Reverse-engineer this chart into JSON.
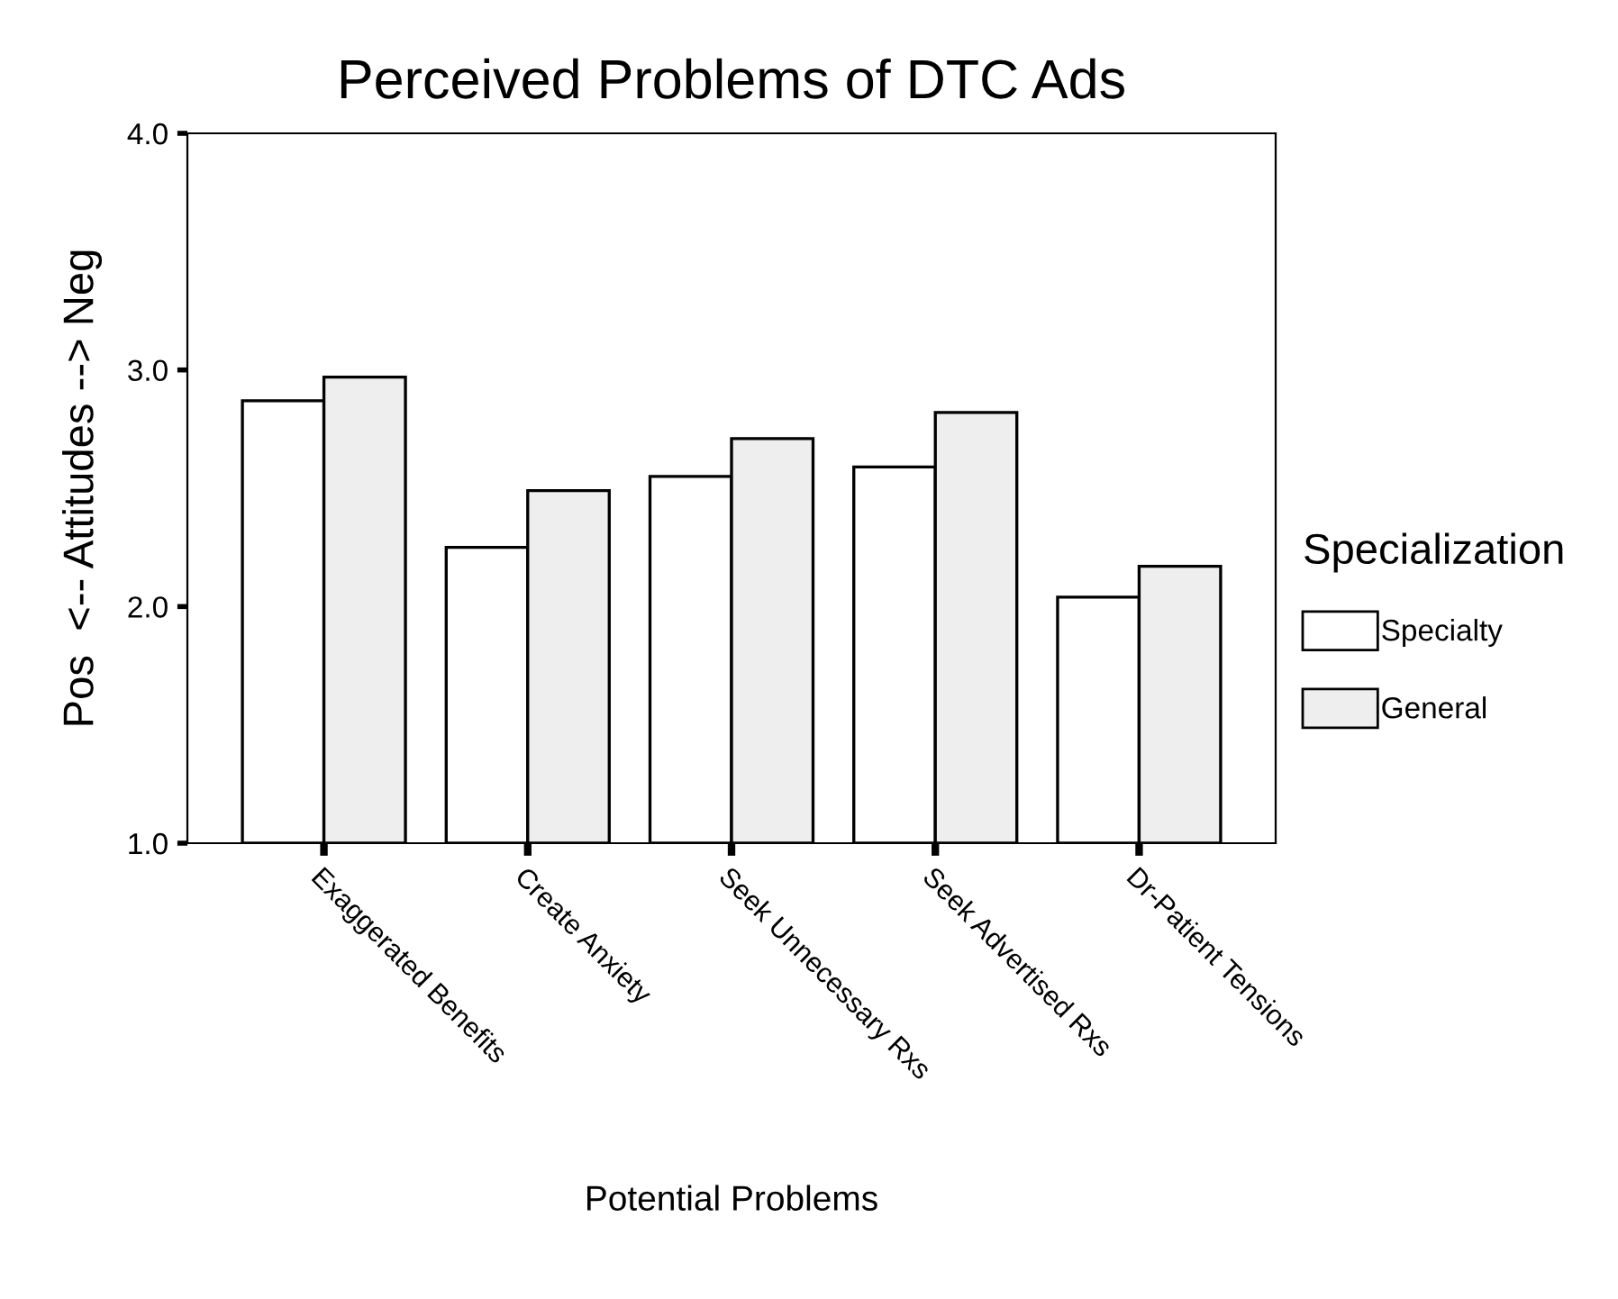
{
  "chart_data": {
    "type": "bar",
    "title": "Perceived Problems of DTC Ads",
    "xlabel": "Potential Problems",
    "ylabel": "Pos  <-- Attitudes --> Neg",
    "legend_title": "Specialization",
    "categories": [
      "Exaggerated Benefits",
      "Create Anxiety",
      "Seek Unnecessary Rxs",
      "Seek Advertised Rxs",
      "Dr-Patient Tensions"
    ],
    "series": [
      {
        "name": "Specialty",
        "color": "#ffffff",
        "values": [
          2.87,
          2.25,
          2.55,
          2.59,
          2.04
        ]
      },
      {
        "name": "General",
        "color": "#eeeeee",
        "values": [
          2.97,
          2.49,
          2.71,
          2.82,
          2.17
        ]
      }
    ],
    "ylim": [
      1.0,
      4.0
    ],
    "yticks": [
      {
        "value": 1,
        "label": "1.0"
      },
      {
        "value": 2,
        "label": "2.0"
      },
      {
        "value": 3,
        "label": "3.0"
      },
      {
        "value": 4,
        "label": "4.0"
      }
    ],
    "grid": false,
    "legend": "right"
  }
}
